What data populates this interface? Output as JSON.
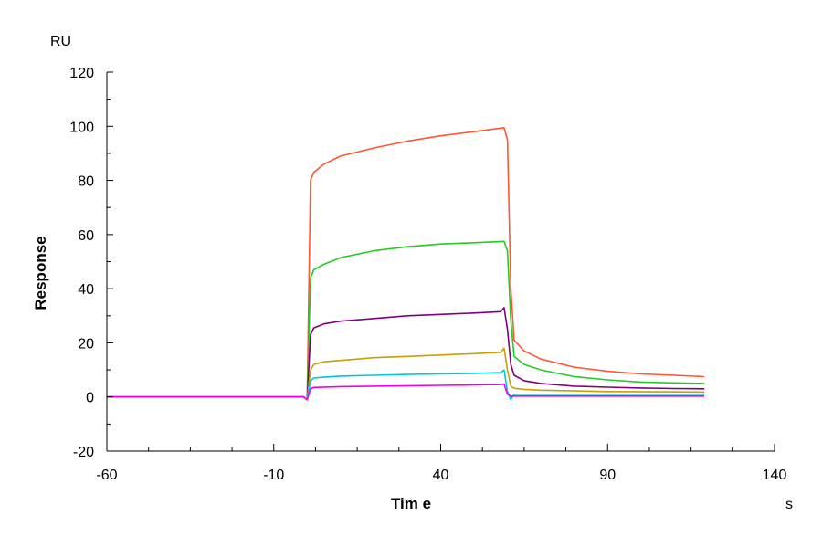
{
  "chart_data": {
    "type": "line",
    "ylabel": "Response",
    "yunit": "RU",
    "xlabel": "Tim e",
    "xunit": "s",
    "xlim": [
      -60,
      140
    ],
    "ylim": [
      -20,
      120
    ],
    "x_ticks": [
      -60,
      -10,
      40,
      90,
      140
    ],
    "y_ticks": [
      -20,
      0,
      20,
      40,
      60,
      80,
      100,
      120
    ],
    "x_tick_labels": [
      "-60",
      "-10",
      "40",
      "90",
      "140"
    ],
    "y_tick_labels": [
      "-20",
      "0",
      "20",
      "40",
      "60",
      "80",
      "100",
      "120"
    ],
    "grid": false,
    "legend": "none",
    "association_start": 0,
    "dissociation_start": 60,
    "series": [
      {
        "color": "#ff5533",
        "points": [
          [
            -60,
            0
          ],
          [
            -8,
            0
          ],
          [
            -1,
            0
          ],
          [
            0,
            -1
          ],
          [
            1,
            80
          ],
          [
            2,
            83
          ],
          [
            5,
            86
          ],
          [
            10,
            89
          ],
          [
            20,
            92
          ],
          [
            30,
            94.5
          ],
          [
            40,
            96.5
          ],
          [
            50,
            98
          ],
          [
            59,
            99.5
          ],
          [
            60,
            95
          ],
          [
            61,
            40
          ],
          [
            62,
            21
          ],
          [
            65,
            17
          ],
          [
            70,
            14
          ],
          [
            80,
            11
          ],
          [
            90,
            9.5
          ],
          [
            100,
            8.5
          ],
          [
            110,
            8
          ],
          [
            119,
            7.5
          ]
        ]
      },
      {
        "color": "#22cc22",
        "points": [
          [
            -60,
            0
          ],
          [
            -8,
            0
          ],
          [
            -1,
            0
          ],
          [
            0,
            -1
          ],
          [
            1,
            44
          ],
          [
            2,
            47
          ],
          [
            5,
            49
          ],
          [
            10,
            51.5
          ],
          [
            20,
            54
          ],
          [
            30,
            55.5
          ],
          [
            40,
            56.5
          ],
          [
            50,
            57
          ],
          [
            59,
            57.5
          ],
          [
            60,
            54
          ],
          [
            61,
            28
          ],
          [
            62,
            15
          ],
          [
            65,
            12
          ],
          [
            70,
            10
          ],
          [
            80,
            7.5
          ],
          [
            90,
            6.3
          ],
          [
            100,
            5.5
          ],
          [
            110,
            5.2
          ],
          [
            119,
            5
          ]
        ]
      },
      {
        "color": "#800080",
        "points": [
          [
            -60,
            0
          ],
          [
            -8,
            0
          ],
          [
            -1,
            0
          ],
          [
            0,
            -1
          ],
          [
            1,
            23
          ],
          [
            2,
            25.5
          ],
          [
            5,
            27
          ],
          [
            10,
            28
          ],
          [
            20,
            29
          ],
          [
            30,
            30
          ],
          [
            40,
            30.5
          ],
          [
            50,
            31
          ],
          [
            58,
            31.5
          ],
          [
            59,
            33
          ],
          [
            60,
            25
          ],
          [
            61,
            12
          ],
          [
            62,
            8
          ],
          [
            65,
            6
          ],
          [
            70,
            5
          ],
          [
            80,
            4
          ],
          [
            90,
            3.6
          ],
          [
            100,
            3.3
          ],
          [
            110,
            3.1
          ],
          [
            119,
            3
          ]
        ]
      },
      {
        "color": "#c8a000",
        "points": [
          [
            -60,
            0
          ],
          [
            -8,
            0
          ],
          [
            -1,
            0
          ],
          [
            0,
            -1
          ],
          [
            1,
            10
          ],
          [
            2,
            12
          ],
          [
            5,
            13
          ],
          [
            10,
            13.5
          ],
          [
            20,
            14.5
          ],
          [
            30,
            15
          ],
          [
            40,
            15.5
          ],
          [
            50,
            16
          ],
          [
            58,
            16.5
          ],
          [
            59,
            18
          ],
          [
            60,
            10
          ],
          [
            61,
            4
          ],
          [
            62,
            3.2
          ],
          [
            65,
            2.8
          ],
          [
            70,
            2.5
          ],
          [
            90,
            2
          ],
          [
            119,
            1.8
          ]
        ]
      },
      {
        "color": "#00c8d8",
        "points": [
          [
            -60,
            0
          ],
          [
            -8,
            0
          ],
          [
            -1,
            0
          ],
          [
            0,
            -1
          ],
          [
            1,
            6
          ],
          [
            2,
            7
          ],
          [
            5,
            7.3
          ],
          [
            10,
            7.7
          ],
          [
            20,
            8
          ],
          [
            30,
            8.3
          ],
          [
            40,
            8.5
          ],
          [
            50,
            8.7
          ],
          [
            58,
            9
          ],
          [
            59,
            10
          ],
          [
            60,
            2
          ],
          [
            61,
            -1
          ],
          [
            62,
            1
          ],
          [
            65,
            1
          ],
          [
            119,
            1
          ]
        ]
      },
      {
        "color": "#ee00ee",
        "points": [
          [
            -60,
            0
          ],
          [
            -8,
            0
          ],
          [
            -1,
            0
          ],
          [
            0,
            -1
          ],
          [
            1,
            3
          ],
          [
            2,
            3.5
          ],
          [
            10,
            3.8
          ],
          [
            20,
            4
          ],
          [
            40,
            4.3
          ],
          [
            58,
            4.6
          ],
          [
            59,
            4.8
          ],
          [
            60,
            1
          ],
          [
            61,
            0.3
          ],
          [
            62,
            0.3
          ],
          [
            119,
            0.3
          ]
        ]
      }
    ]
  }
}
